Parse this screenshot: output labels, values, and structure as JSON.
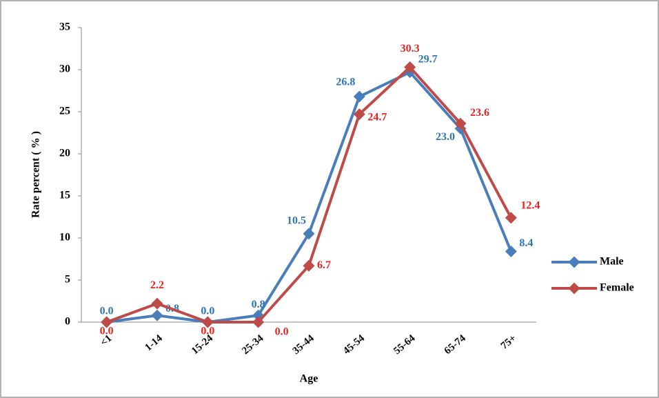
{
  "chart_data": {
    "type": "line",
    "x_label": "Age",
    "y_label": "Rate percent ( % )",
    "categories": [
      "<1",
      "1-14",
      "15-24",
      "25-34",
      "35-44",
      "45-54",
      "55-64",
      "65-74",
      "75+"
    ],
    "series": [
      {
        "name": "Male",
        "color": "#4a7ebb",
        "label_color": "#2e75b6",
        "values": [
          0,
          0.8,
          0,
          0.8,
          10.5,
          26.8,
          29.7,
          23,
          8.4
        ],
        "value_labels": [
          "0.0",
          "0.8",
          "0.0",
          "0.8",
          "10.5",
          "26.8",
          "29.7",
          "23.0",
          "8.4"
        ]
      },
      {
        "name": "Female",
        "color": "#be4b48",
        "label_color": "#e8231f",
        "values": [
          0,
          2.2,
          0,
          0,
          6.7,
          24.7,
          30.3,
          23.6,
          12.4
        ],
        "value_labels": [
          "0.0",
          "2.2",
          "0.0",
          "0.0",
          "6.7",
          "24.7",
          "30.3",
          "23.6",
          "12.4"
        ]
      }
    ],
    "ylim": [
      0,
      35
    ],
    "yticks": [
      0,
      5,
      10,
      15,
      20,
      25,
      30,
      35
    ],
    "grid": false,
    "legend": "right"
  }
}
